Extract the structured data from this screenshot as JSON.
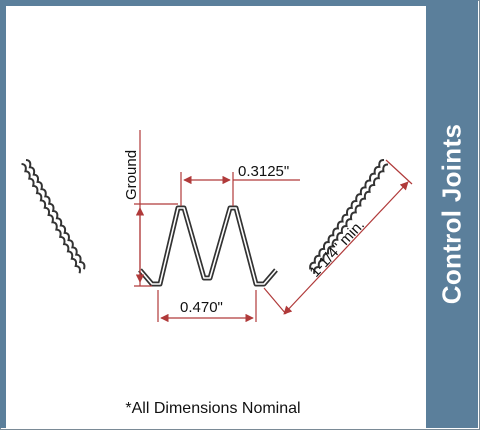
{
  "sidebar": {
    "title": "Control Joints"
  },
  "dimensions": {
    "ground": "Ground",
    "pitch": "0.3125\"",
    "width": "0.470\"",
    "flange": "1-1/4\" min."
  },
  "footnote": "*All Dimensions Nominal",
  "colors": {
    "dimension_lines": "#b03a3a",
    "profile": "#333333",
    "sidebar": "#5b7f9b"
  }
}
